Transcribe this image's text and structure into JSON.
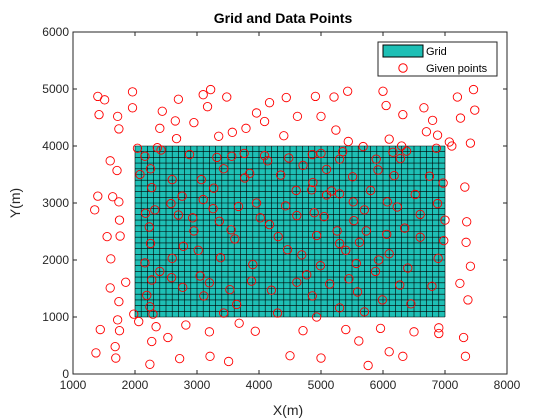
{
  "chart_data": {
    "type": "scatter",
    "title": "Grid and Data Points",
    "xlabel": "X(m)",
    "ylabel": "Y(m)",
    "xlim": [
      1000,
      8000
    ],
    "ylim": [
      0,
      6000
    ],
    "xticks": [
      1000,
      2000,
      3000,
      4000,
      5000,
      6000,
      7000,
      8000
    ],
    "yticks": [
      0,
      1000,
      2000,
      3000,
      4000,
      5000,
      6000
    ],
    "grid": {
      "name": "Grid",
      "x_range": [
        2000,
        7000
      ],
      "y_range": [
        1000,
        4000
      ],
      "x_step": 100,
      "y_step": 100,
      "color": "#1ebfb5",
      "line_color": "#000000"
    },
    "legend": {
      "placement": "top-right",
      "entries": [
        "Grid",
        "Given points"
      ]
    },
    "series": [
      {
        "name": "Given points",
        "marker": "circle",
        "color": "#ff0000",
        "points": [
          [
            1400,
            4870
          ],
          [
            1510,
            4810
          ],
          [
            1420,
            4550
          ],
          [
            1720,
            4520
          ],
          [
            1740,
            4300
          ],
          [
            1600,
            3740
          ],
          [
            1710,
            3570
          ],
          [
            1400,
            3120
          ],
          [
            1350,
            2880
          ],
          [
            1640,
            3110
          ],
          [
            1740,
            3020
          ],
          [
            1750,
            2700
          ],
          [
            1550,
            2410
          ],
          [
            1760,
            2420
          ],
          [
            1610,
            2020
          ],
          [
            1600,
            1510
          ],
          [
            1850,
            1610
          ],
          [
            1740,
            1270
          ],
          [
            1720,
            950
          ],
          [
            1750,
            760
          ],
          [
            1440,
            780
          ],
          [
            1680,
            480
          ],
          [
            1370,
            370
          ],
          [
            1690,
            280
          ],
          [
            1980,
            1050
          ],
          [
            2060,
            920
          ],
          [
            1960,
            4670
          ],
          [
            1960,
            4950
          ],
          [
            2160,
            3820
          ],
          [
            2040,
            3960
          ],
          [
            2080,
            3500
          ],
          [
            2250,
            3600
          ],
          [
            2270,
            3270
          ],
          [
            2170,
            2820
          ],
          [
            2230,
            2580
          ],
          [
            2250,
            2290
          ],
          [
            2160,
            1950
          ],
          [
            2270,
            1650
          ],
          [
            2190,
            1380
          ],
          [
            2240,
            1180
          ],
          [
            2290,
            1050
          ],
          [
            2400,
            4310
          ],
          [
            2440,
            4610
          ],
          [
            2360,
            3970
          ],
          [
            2420,
            3930
          ],
          [
            2320,
            2880
          ],
          [
            2400,
            1800
          ],
          [
            2340,
            830
          ],
          [
            2530,
            640
          ],
          [
            2270,
            570
          ],
          [
            2240,
            170
          ],
          [
            2700,
            4820
          ],
          [
            2650,
            4440
          ],
          [
            2670,
            4130
          ],
          [
            2600,
            3410
          ],
          [
            2580,
            2990
          ],
          [
            2700,
            2790
          ],
          [
            2600,
            2030
          ],
          [
            2590,
            1690
          ],
          [
            2760,
            3120
          ],
          [
            2780,
            2240
          ],
          [
            2770,
            1520
          ],
          [
            2820,
            860
          ],
          [
            2720,
            270
          ],
          [
            2950,
            4410
          ],
          [
            2880,
            3850
          ],
          [
            3070,
            3410
          ],
          [
            3100,
            3060
          ],
          [
            2930,
            2740
          ],
          [
            2950,
            2510
          ],
          [
            3020,
            2170
          ],
          [
            3050,
            1720
          ],
          [
            3110,
            1370
          ],
          [
            3200,
            1600
          ],
          [
            3100,
            4900
          ],
          [
            3170,
            4690
          ],
          [
            3220,
            4990
          ],
          [
            3260,
            2900
          ],
          [
            3320,
            3800
          ],
          [
            3270,
            3260
          ],
          [
            3350,
            4170
          ],
          [
            3200,
            740
          ],
          [
            3210,
            310
          ],
          [
            3360,
            2680
          ],
          [
            3380,
            2040
          ],
          [
            3430,
            3600
          ],
          [
            3570,
            4240
          ],
          [
            3480,
            4860
          ],
          [
            3560,
            3820
          ],
          [
            3550,
            2530
          ],
          [
            3530,
            1480
          ],
          [
            3430,
            1070
          ],
          [
            3510,
            220
          ],
          [
            3670,
            2940
          ],
          [
            3610,
            2370
          ],
          [
            3640,
            1220
          ],
          [
            3680,
            890
          ],
          [
            3790,
            4310
          ],
          [
            3760,
            3870
          ],
          [
            3770,
            3440
          ],
          [
            3850,
            3520
          ],
          [
            3900,
            1920
          ],
          [
            3880,
            1630
          ],
          [
            3940,
            750
          ],
          [
            3960,
            3000
          ],
          [
            3960,
            4580
          ],
          [
            4090,
            4430
          ],
          [
            4140,
            3740
          ],
          [
            4170,
            2620
          ],
          [
            4200,
            1470
          ],
          [
            4020,
            2740
          ],
          [
            4090,
            3830
          ],
          [
            4170,
            4760
          ],
          [
            4400,
            4180
          ],
          [
            4350,
            3490
          ],
          [
            4310,
            2410
          ],
          [
            4300,
            1070
          ],
          [
            4430,
            2950
          ],
          [
            4460,
            2180
          ],
          [
            4440,
            4850
          ],
          [
            4480,
            3790
          ],
          [
            4500,
            320
          ],
          [
            4600,
            3220
          ],
          [
            4610,
            2780
          ],
          [
            4620,
            4520
          ],
          [
            4710,
            3660
          ],
          [
            4610,
            1610
          ],
          [
            4690,
            2090
          ],
          [
            4770,
            1740
          ],
          [
            4710,
            760
          ],
          [
            4910,
            4870
          ],
          [
            4850,
            3230
          ],
          [
            4890,
            2830
          ],
          [
            4860,
            3850
          ],
          [
            4870,
            3360
          ],
          [
            4930,
            2430
          ],
          [
            4860,
            1370
          ],
          [
            4930,
            1000
          ],
          [
            4990,
            1900
          ],
          [
            5000,
            3870
          ],
          [
            5000,
            4520
          ],
          [
            5000,
            280
          ],
          [
            5050,
            2760
          ],
          [
            5090,
            3140
          ],
          [
            5090,
            3590
          ],
          [
            5140,
            1580
          ],
          [
            5170,
            3210
          ],
          [
            5210,
            4860
          ],
          [
            5240,
            4280
          ],
          [
            5300,
            3770
          ],
          [
            5300,
            3160
          ],
          [
            5260,
            2510
          ],
          [
            5300,
            2290
          ],
          [
            5300,
            1160
          ],
          [
            5350,
            3900
          ],
          [
            5400,
            2170
          ],
          [
            5450,
            1670
          ],
          [
            5400,
            780
          ],
          [
            5430,
            4960
          ],
          [
            5440,
            4080
          ],
          [
            5510,
            3460
          ],
          [
            5520,
            3020
          ],
          [
            5530,
            2690
          ],
          [
            5570,
            1940
          ],
          [
            5620,
            2310
          ],
          [
            5590,
            1440
          ],
          [
            5610,
            580
          ],
          [
            5680,
            3990
          ],
          [
            5700,
            2880
          ],
          [
            5700,
            1090
          ],
          [
            5730,
            2510
          ],
          [
            5760,
            150
          ],
          [
            5800,
            3220
          ],
          [
            5880,
            1800
          ],
          [
            5890,
            3770
          ],
          [
            5920,
            3580
          ],
          [
            5930,
            2000
          ],
          [
            5960,
            800
          ],
          [
            5990,
            1300
          ],
          [
            6000,
            4960
          ],
          [
            6100,
            4120
          ],
          [
            6050,
            4710
          ],
          [
            6070,
            3020
          ],
          [
            6060,
            2450
          ],
          [
            6100,
            2110
          ],
          [
            6160,
            3890
          ],
          [
            6180,
            3480
          ],
          [
            6100,
            390
          ],
          [
            6230,
            2930
          ],
          [
            6270,
            1560
          ],
          [
            6280,
            3780
          ],
          [
            6300,
            4000
          ],
          [
            6320,
            4550
          ],
          [
            6350,
            2560
          ],
          [
            6320,
            310
          ],
          [
            6380,
            3910
          ],
          [
            6400,
            1860
          ],
          [
            6450,
            1230
          ],
          [
            6500,
            740
          ],
          [
            6520,
            3150
          ],
          [
            6600,
            2800
          ],
          [
            6600,
            2400
          ],
          [
            6660,
            4670
          ],
          [
            6700,
            4250
          ],
          [
            6750,
            3470
          ],
          [
            6800,
            4450
          ],
          [
            6860,
            3960
          ],
          [
            6880,
            4190
          ],
          [
            6880,
            2990
          ],
          [
            6890,
            2030
          ],
          [
            6790,
            1540
          ],
          [
            6900,
            810
          ],
          [
            6900,
            710
          ],
          [
            6970,
            3350
          ],
          [
            6980,
            2340
          ],
          [
            7000,
            2700
          ],
          [
            7070,
            4070
          ],
          [
            7110,
            4000
          ],
          [
            7200,
            4860
          ],
          [
            7250,
            4490
          ],
          [
            7240,
            1590
          ],
          [
            7300,
            640
          ],
          [
            7330,
            310
          ],
          [
            7320,
            3280
          ],
          [
            7340,
            2310
          ],
          [
            7410,
            4050
          ],
          [
            7370,
            1300
          ],
          [
            7410,
            1890
          ],
          [
            7460,
            4990
          ],
          [
            7480,
            4630
          ],
          [
            7350,
            2670
          ]
        ]
      }
    ]
  }
}
